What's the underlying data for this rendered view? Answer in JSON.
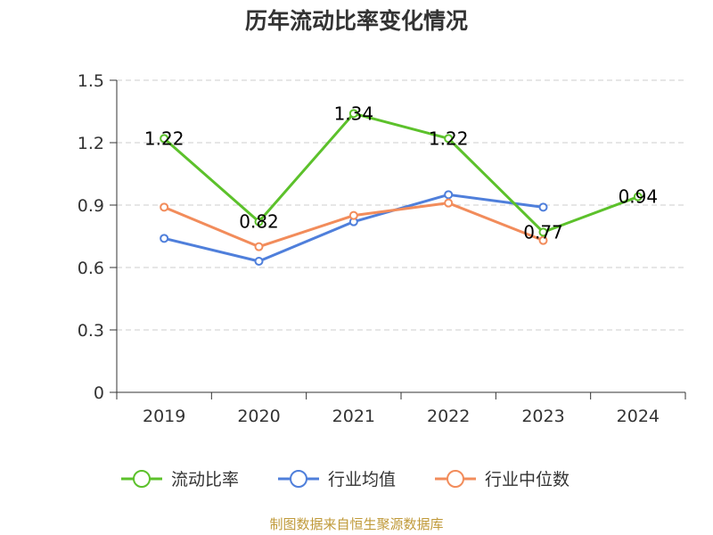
{
  "title": "历年流动比率变化情况",
  "source": "制图数据来自恒生聚源数据库",
  "chart_data": {
    "type": "line",
    "categories": [
      "2019",
      "2020",
      "2021",
      "2022",
      "2023",
      "2024"
    ],
    "ylim": [
      0,
      1.5
    ],
    "yticks": [
      "0",
      "0.3",
      "0.6",
      "0.9",
      "1.2",
      "1.5"
    ],
    "grid": true,
    "legend_position": "bottom",
    "series": [
      {
        "name": "流动比率",
        "color": "#5cc12b",
        "values": [
          1.22,
          0.82,
          1.34,
          1.22,
          0.77,
          0.94
        ],
        "labels": [
          "1.22",
          "0.82",
          "1.34",
          "1.22",
          "0.77",
          "0.94"
        ]
      },
      {
        "name": "行业均值",
        "color": "#4f7fdb",
        "values": [
          0.74,
          0.63,
          0.82,
          0.95,
          0.89,
          null
        ]
      },
      {
        "name": "行业中位数",
        "color": "#f28c5b",
        "values": [
          0.89,
          0.7,
          0.85,
          0.91,
          0.73,
          null
        ]
      }
    ]
  }
}
